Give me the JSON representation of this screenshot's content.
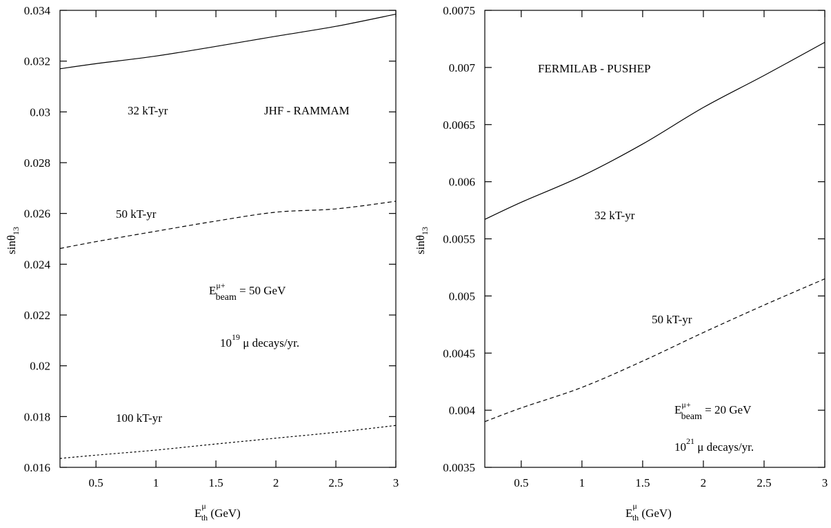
{
  "chart_data": [
    {
      "type": "line",
      "xlim": [
        0.2,
        3.0
      ],
      "ylim": [
        0.016,
        0.034
      ],
      "x_ticks": [
        0.5,
        1,
        1.5,
        2,
        2.5,
        3
      ],
      "x_tick_labels": [
        "0.5",
        "1",
        "1.5",
        "2",
        "2.5",
        "3"
      ],
      "y_ticks": [
        0.016,
        0.018,
        0.02,
        0.022,
        0.024,
        0.026,
        0.028,
        0.03,
        0.032,
        0.034
      ],
      "y_tick_labels": [
        "0.016",
        "0.018",
        "0.02",
        "0.022",
        "0.024",
        "0.026",
        "0.028",
        "0.03",
        "0.032",
        "0.034"
      ],
      "xlabel": {
        "base": "E",
        "sup": "μ",
        "sub": "th",
        "rest": " (GeV)"
      },
      "ylabel": {
        "base": "sinθ",
        "sub": "13"
      },
      "grid": false,
      "series": [
        {
          "label": "32 kT-yr",
          "style": "solid",
          "x": [
            0.2,
            0.5,
            1.0,
            1.5,
            2.0,
            2.5,
            3.0
          ],
          "y": [
            0.0317,
            0.0319,
            0.0322,
            0.03258,
            0.03298,
            0.03337,
            0.03385
          ]
        },
        {
          "label": "50 kT-yr",
          "style": "dashed",
          "x": [
            0.2,
            0.5,
            1.0,
            1.5,
            2.0,
            2.5,
            3.0
          ],
          "y": [
            0.02462,
            0.02489,
            0.0253,
            0.0257,
            0.02605,
            0.02618,
            0.02648
          ]
        },
        {
          "label": "100 kT-yr",
          "style": "dotted",
          "x": [
            0.2,
            0.5,
            1.0,
            1.5,
            2.0,
            2.5,
            3.0
          ],
          "y": [
            0.01635,
            0.01648,
            0.01668,
            0.01692,
            0.01715,
            0.01738,
            0.01765
          ]
        }
      ],
      "annotations": {
        "experiment": "JHF - RAMMAM",
        "energy": {
          "base": "E",
          "sup": "μ+",
          "sub": "beam",
          "rest": " = 50 GeV"
        },
        "decays": {
          "base": "10",
          "sup": "19",
          "rest": " μ decays/yr."
        }
      }
    },
    {
      "type": "line",
      "xlim": [
        0.2,
        3.0
      ],
      "ylim": [
        0.0035,
        0.0075
      ],
      "x_ticks": [
        0.5,
        1,
        1.5,
        2,
        2.5,
        3
      ],
      "x_tick_labels": [
        "0.5",
        "1",
        "1.5",
        "2",
        "2.5",
        "3"
      ],
      "y_ticks": [
        0.0035,
        0.004,
        0.0045,
        0.005,
        0.0055,
        0.006,
        0.0065,
        0.007,
        0.0075
      ],
      "y_tick_labels": [
        "0.0035",
        "0.004",
        "0.0045",
        "0.005",
        "0.0055",
        "0.006",
        "0.0065",
        "0.007",
        "0.0075"
      ],
      "xlabel": {
        "base": "E",
        "sup": "μ",
        "sub": "th",
        "rest": " (GeV)"
      },
      "ylabel": {
        "base": "sinθ",
        "sub": "13"
      },
      "grid": false,
      "series": [
        {
          "label": "32 kT-yr",
          "style": "solid",
          "x": [
            0.2,
            0.5,
            1.0,
            1.5,
            2.0,
            2.5,
            3.0
          ],
          "y": [
            0.00567,
            0.00582,
            0.00605,
            0.00633,
            0.00665,
            0.00693,
            0.00722
          ]
        },
        {
          "label": "50 kT-yr",
          "style": "dashed",
          "x": [
            0.2,
            0.5,
            1.0,
            1.5,
            2.0,
            2.5,
            3.0
          ],
          "y": [
            0.0039,
            0.00402,
            0.0042,
            0.00443,
            0.00468,
            0.00492,
            0.00515
          ]
        }
      ],
      "annotations": {
        "experiment": "FERMILAB - PUSHEP",
        "energy": {
          "base": "E",
          "sup": "μ+",
          "sub": "beam",
          "rest": " = 20 GeV"
        },
        "decays": {
          "base": "10",
          "sup": "21",
          "rest": " μ decays/yr."
        }
      }
    }
  ]
}
